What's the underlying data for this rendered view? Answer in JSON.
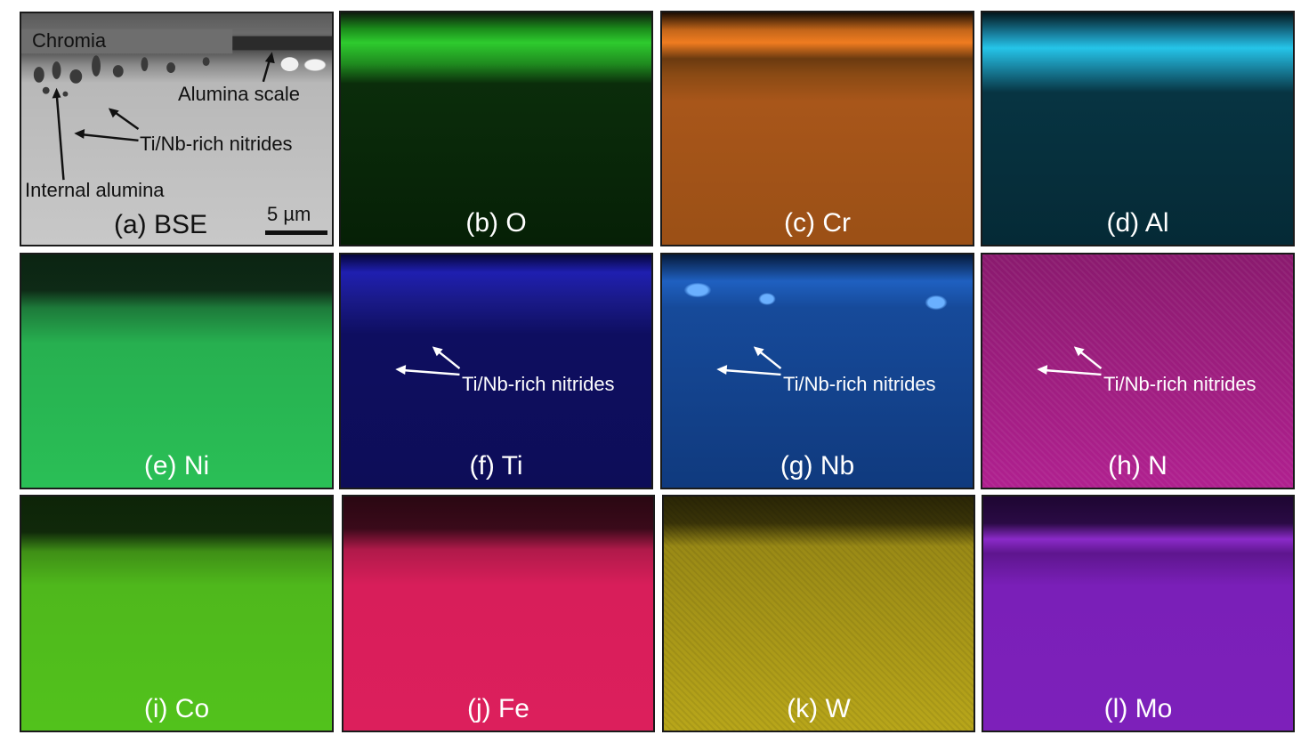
{
  "panels": {
    "a": {
      "label": "(a) BSE",
      "annotations": {
        "chromia": "Chromia",
        "alumina_scale": "Alumina scale",
        "nitrides": "Ti/Nb-rich nitrides",
        "internal_alumina": "Internal alumina"
      },
      "scale_bar": "5 µm",
      "color": "#c4c4c4"
    },
    "b": {
      "label": "(b) O",
      "color": "#1c8a1c"
    },
    "c": {
      "label": "(c) Cr",
      "color": "#c4661a"
    },
    "d": {
      "label": "(d) Al",
      "color": "#1aa6c4"
    },
    "e": {
      "label": "(e) Ni",
      "color": "#27b050"
    },
    "f": {
      "label": "(f) Ti",
      "color": "#1f1fb0",
      "annotation": "Ti/Nb-rich nitrides"
    },
    "g": {
      "label": "(g) Nb",
      "color": "#1f60c0",
      "annotation": "Ti/Nb-rich nitrides"
    },
    "h": {
      "label": "(h) N",
      "color": "#b0208f",
      "annotation": "Ti/Nb-rich nitrides"
    },
    "i": {
      "label": "(i) Co",
      "color": "#4fb81c"
    },
    "j": {
      "label": "(j) Fe",
      "color": "#d81e5a"
    },
    "k": {
      "label": "(k) W",
      "color": "#b8a61a"
    },
    "l": {
      "label": "(l) Mo",
      "color": "#7a1fb8"
    }
  }
}
